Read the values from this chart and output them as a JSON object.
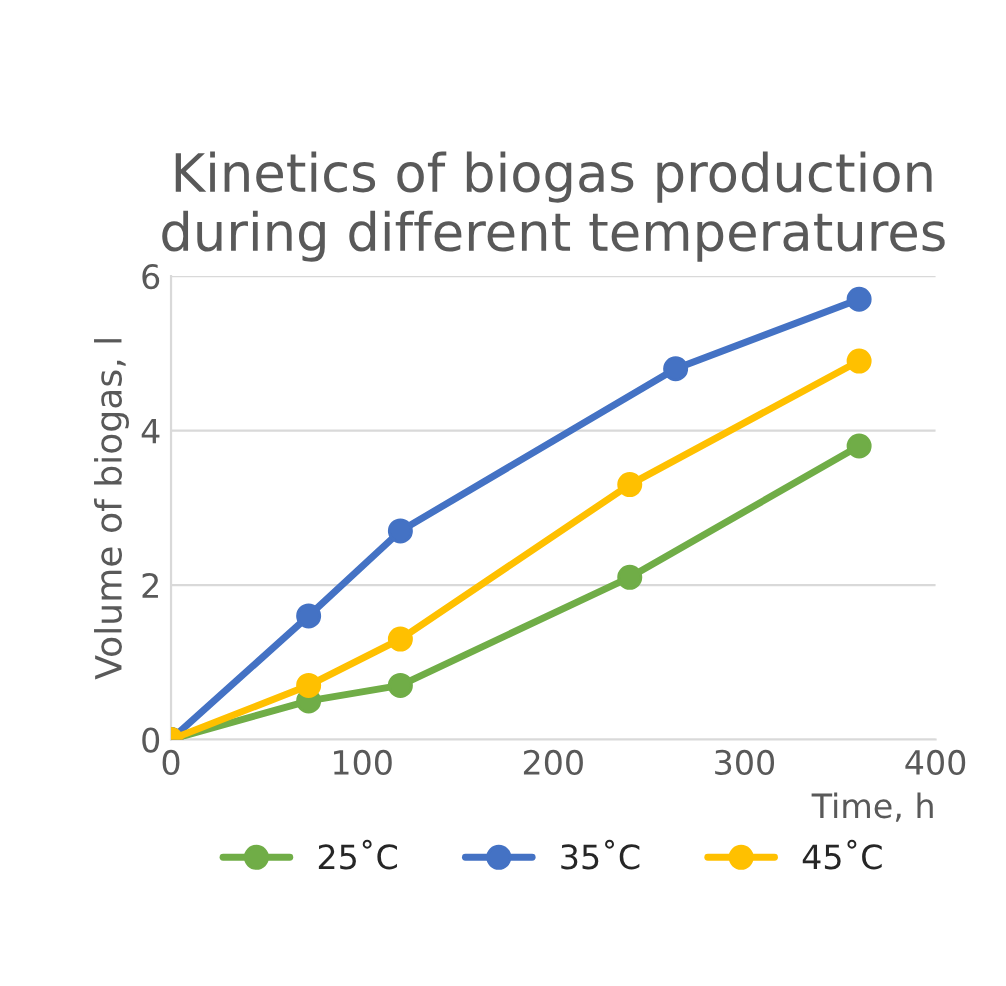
{
  "chart_data": {
    "type": "line",
    "title": "Kinetics of biogas production during different temperatures",
    "xlabel": "Time, h",
    "ylabel": "Volume of biogas, l",
    "xlim": [
      0,
      400
    ],
    "xticks": [
      0,
      100,
      200,
      300,
      400
    ],
    "ylim": [
      0,
      6
    ],
    "yticks": [
      0,
      2,
      4,
      6
    ],
    "grid": "y",
    "legend": "bottom",
    "marker": "circle",
    "line_style": "solid",
    "series": [
      {
        "name": "25˚C",
        "color": "#70ad47",
        "x": [
          0,
          72,
          120,
          240,
          360
        ],
        "values": [
          0,
          0.5,
          0.7,
          2.1,
          3.8
        ]
      },
      {
        "name": "35˚C",
        "color": "#4472c4",
        "x": [
          0,
          72,
          120,
          264,
          360
        ],
        "values": [
          0,
          1.6,
          2.7,
          4.8,
          5.7
        ]
      },
      {
        "name": "45˚C",
        "color": "#ffc000",
        "x": [
          0,
          72,
          120,
          240,
          360
        ],
        "values": [
          0,
          0.7,
          1.3,
          3.3,
          4.9
        ]
      }
    ]
  }
}
